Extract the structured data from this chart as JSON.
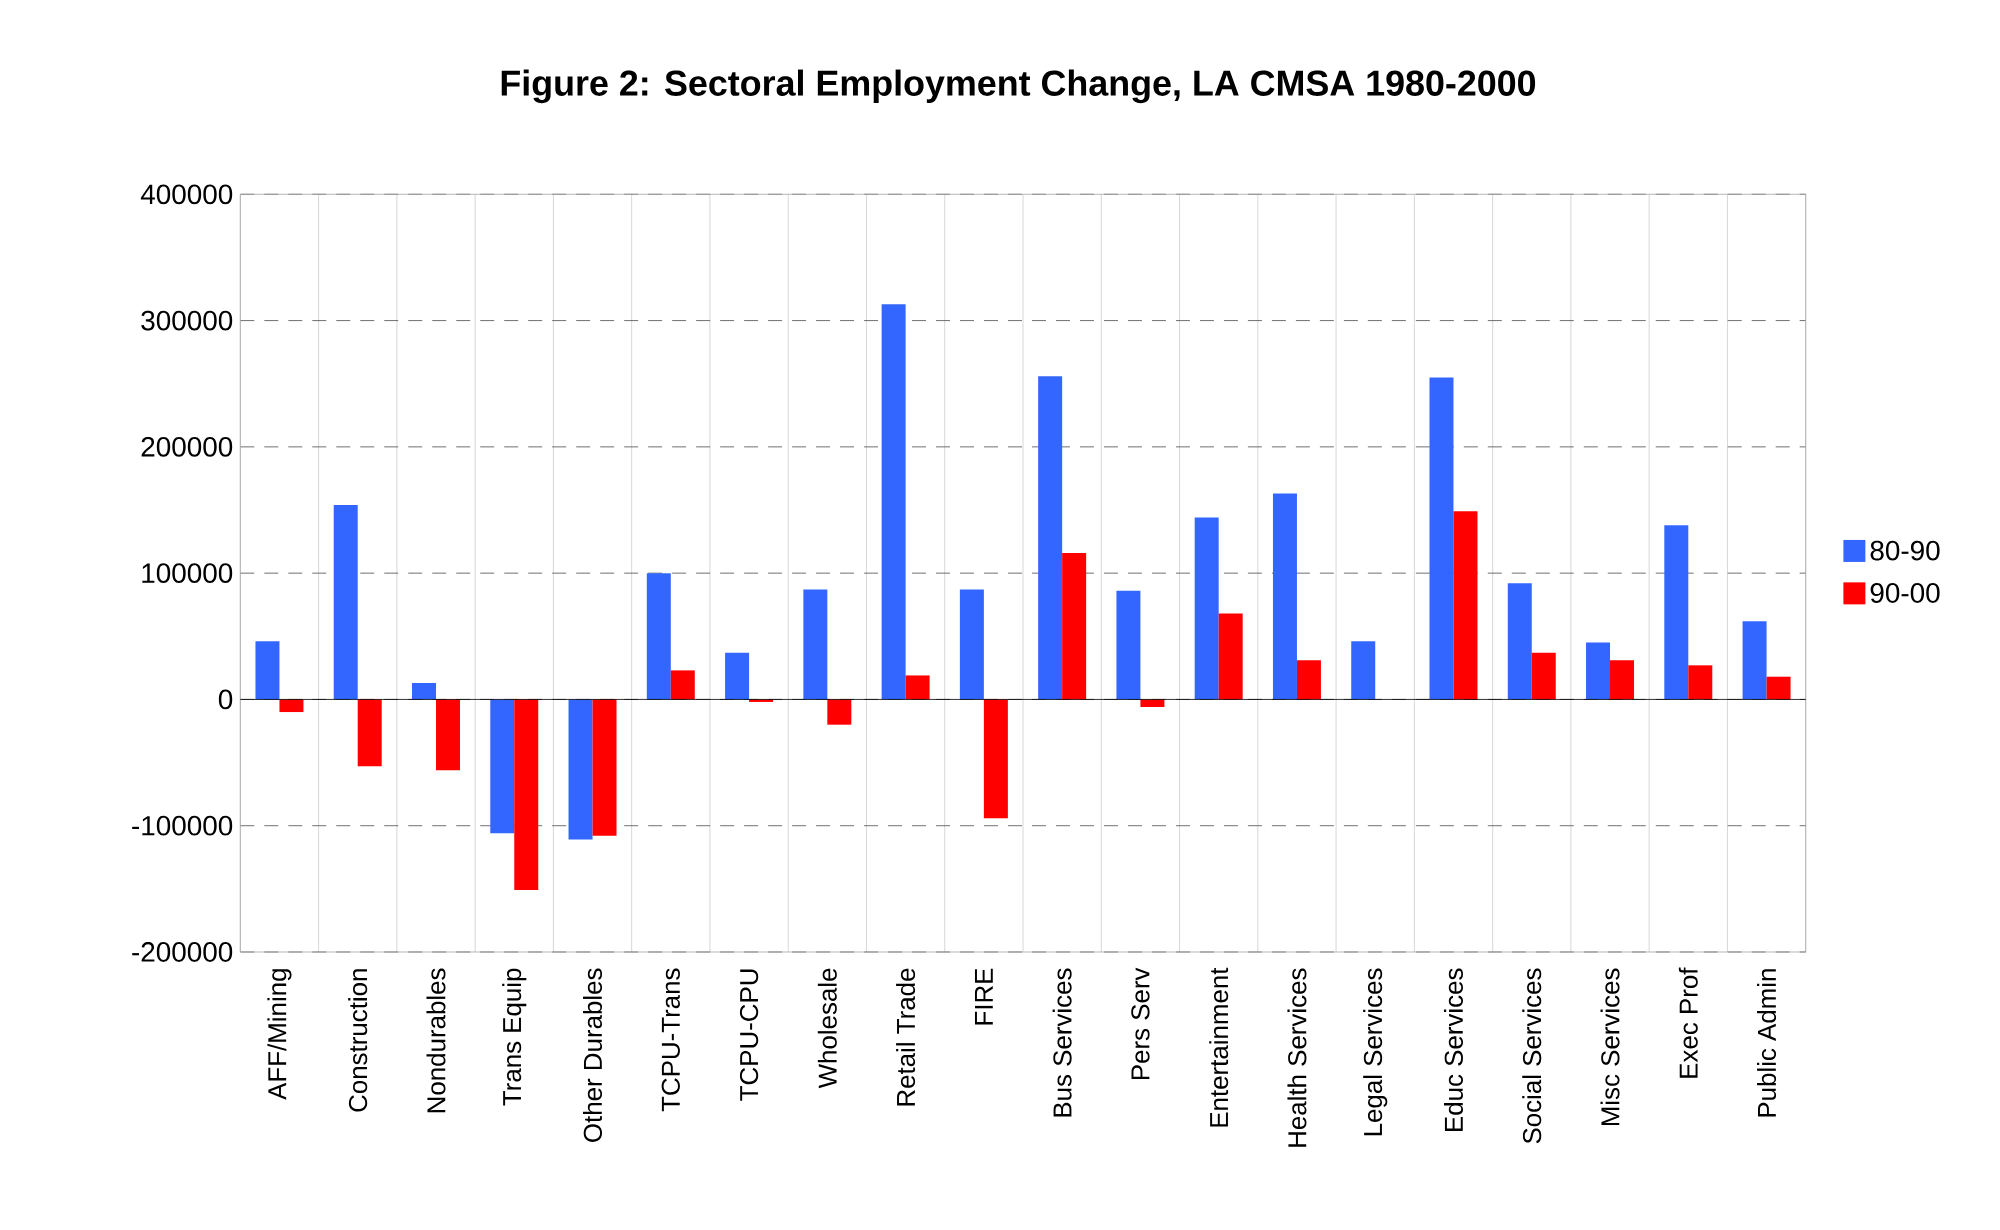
{
  "chart_data": {
    "type": "bar",
    "title": "Figure 2: Sectoral Employment Change, LA CMSA 1980-2000",
    "categories": [
      "AFF/Mining",
      "Construction",
      "Nondurables",
      "Trans Equip",
      "Other Durables",
      "TCPU-Trans",
      "TCPU-CPU",
      "Wholesale",
      "Retail Trade",
      "FIRE",
      "Bus Services",
      "Pers Serv",
      "Entertainment",
      "Health Services",
      "Legal Services",
      "Educ Services",
      "Social Services",
      "Misc Services",
      "Exec Prof",
      "Public Admin"
    ],
    "series": [
      {
        "name": "80-90",
        "color": "#3366ff",
        "values": [
          46000,
          154000,
          13000,
          -106000,
          -111000,
          100000,
          37000,
          87000,
          313000,
          87000,
          256000,
          86000,
          144000,
          163000,
          46000,
          255000,
          92000,
          45000,
          138000,
          62000
        ]
      },
      {
        "name": "90-00",
        "color": "#ff0000",
        "values": [
          -10000,
          -53000,
          -56000,
          -151000,
          -108000,
          23000,
          -2000,
          -20000,
          19000,
          -94000,
          116000,
          -6000,
          68000,
          31000,
          null,
          149000,
          37000,
          31000,
          27000,
          18000
        ]
      }
    ],
    "ylim": [
      -200000,
      400000
    ],
    "yticks": [
      -200000,
      -100000,
      0,
      100000,
      200000,
      300000,
      400000
    ],
    "grid": true,
    "legend": "right"
  }
}
